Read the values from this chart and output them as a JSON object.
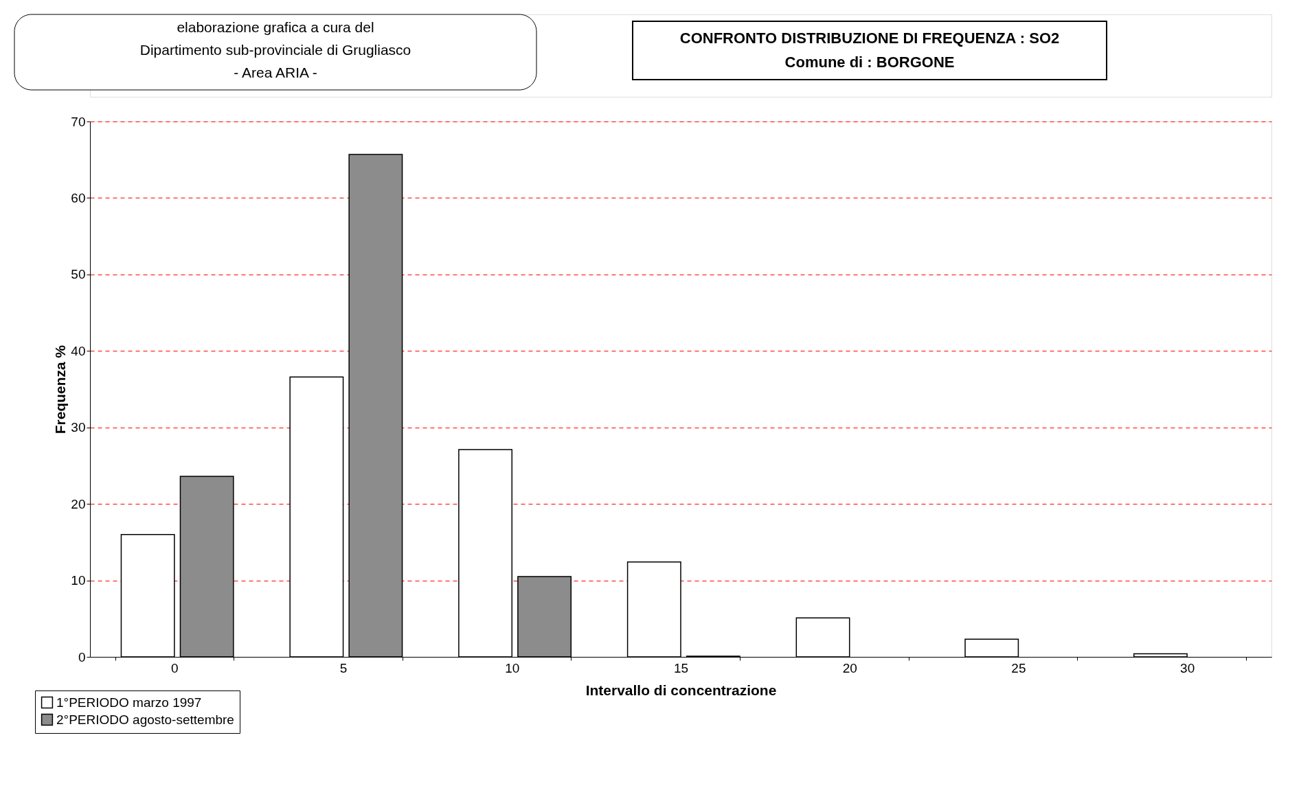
{
  "chart_data": {
    "type": "bar",
    "title": "CONFRONTO DISTRIBUZIONE DI FREQUENZA : SO2",
    "subtitle": "Comune di : BORGONE",
    "xlabel": "Intervallo di concentrazione",
    "ylabel": "Frequenza %",
    "categories": [
      "0",
      "5",
      "10",
      "15",
      "20",
      "25",
      "30"
    ],
    "series": [
      {
        "name": "1°PERIODO marzo 1997",
        "color": "#ffffff",
        "values": [
          16.0,
          36.6,
          27.1,
          12.4,
          5.1,
          2.3,
          0.4
        ]
      },
      {
        "name": "2°PERIODO agosto-settembre",
        "color": "#8c8c8c",
        "values": [
          23.6,
          65.7,
          10.5,
          0.1,
          null,
          null,
          null
        ]
      }
    ],
    "ylim": [
      0,
      70
    ],
    "yticks": [
      0,
      10,
      20,
      30,
      40,
      50,
      60,
      70
    ],
    "grid": "y",
    "legend": "bottom left",
    "annotations": [
      "elaborazione grafica a cura del",
      "Dipartimento sub-provinciale di Grugliasco",
      "- Area ARIA -"
    ]
  }
}
